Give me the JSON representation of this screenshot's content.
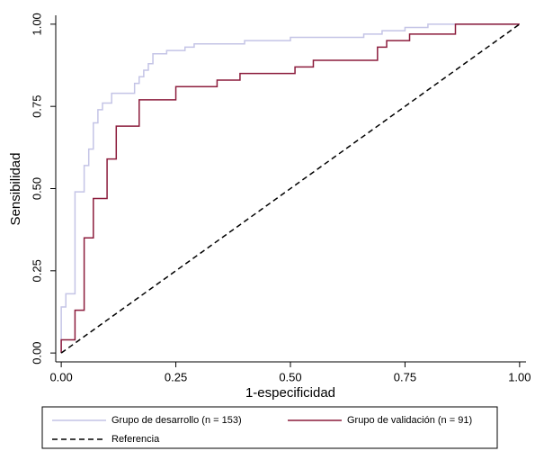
{
  "chart_data": {
    "type": "line",
    "xlabel": "1-especificidad",
    "ylabel": "Sensibilidad",
    "xlim": [
      -0.012,
      1.014
    ],
    "ylim": [
      -0.027,
      1.027
    ],
    "xticks": [
      {
        "value": 0,
        "label": "0.00"
      },
      {
        "value": 0.25,
        "label": "0.25"
      },
      {
        "value": 0.5,
        "label": "0.50"
      },
      {
        "value": 0.75,
        "label": "0.75"
      },
      {
        "value": 1,
        "label": "1.00"
      }
    ],
    "yticks": [
      {
        "value": 0,
        "label": "0.00"
      },
      {
        "value": 0.25,
        "label": "0.25"
      },
      {
        "value": 0.5,
        "label": "0.50"
      },
      {
        "value": 0.75,
        "label": "0.75"
      },
      {
        "value": 1,
        "label": "1.00"
      }
    ],
    "legend": "bottom",
    "series": [
      {
        "name": "Grupo de desarrollo (n = 153)",
        "color": "#c4c4e6",
        "dash": "solid",
        "x": [
          0,
          0,
          0.01,
          0.01,
          0.03,
          0.03,
          0.05,
          0.05,
          0.06,
          0.06,
          0.07,
          0.07,
          0.08,
          0.08,
          0.09,
          0.09,
          0.11,
          0.11,
          0.16,
          0.16,
          0.17,
          0.17,
          0.18,
          0.18,
          0.19,
          0.19,
          0.2,
          0.2,
          0.23,
          0.23,
          0.27,
          0.27,
          0.29,
          0.29,
          0.4,
          0.4,
          0.5,
          0.5,
          0.66,
          0.66,
          0.7,
          0.7,
          0.75,
          0.75,
          0.8,
          0.8,
          1
        ],
        "values": [
          0,
          0.14,
          0.14,
          0.18,
          0.18,
          0.49,
          0.49,
          0.57,
          0.57,
          0.62,
          0.62,
          0.7,
          0.7,
          0.74,
          0.74,
          0.76,
          0.76,
          0.79,
          0.79,
          0.82,
          0.82,
          0.84,
          0.84,
          0.86,
          0.86,
          0.88,
          0.88,
          0.91,
          0.91,
          0.92,
          0.92,
          0.93,
          0.93,
          0.94,
          0.94,
          0.95,
          0.95,
          0.96,
          0.96,
          0.97,
          0.97,
          0.98,
          0.98,
          0.99,
          0.99,
          1,
          1
        ]
      },
      {
        "name": "Grupo de validación (n = 91)",
        "color": "#8c1c3c",
        "dash": "solid",
        "x": [
          0,
          0,
          0.03,
          0.03,
          0.05,
          0.05,
          0.07,
          0.07,
          0.1,
          0.1,
          0.12,
          0.12,
          0.17,
          0.17,
          0.25,
          0.25,
          0.34,
          0.34,
          0.39,
          0.39,
          0.51,
          0.51,
          0.55,
          0.55,
          0.69,
          0.69,
          0.71,
          0.71,
          0.76,
          0.76,
          0.86,
          0.86,
          1
        ],
        "values": [
          0,
          0.04,
          0.04,
          0.13,
          0.13,
          0.35,
          0.35,
          0.47,
          0.47,
          0.59,
          0.59,
          0.69,
          0.69,
          0.77,
          0.77,
          0.81,
          0.81,
          0.83,
          0.83,
          0.85,
          0.85,
          0.87,
          0.87,
          0.89,
          0.89,
          0.93,
          0.93,
          0.95,
          0.95,
          0.97,
          0.97,
          1,
          1
        ]
      },
      {
        "name": "Referencia",
        "color": "#000000",
        "dash": "dashed",
        "x": [
          0,
          1
        ],
        "values": [
          0,
          1
        ]
      }
    ]
  }
}
